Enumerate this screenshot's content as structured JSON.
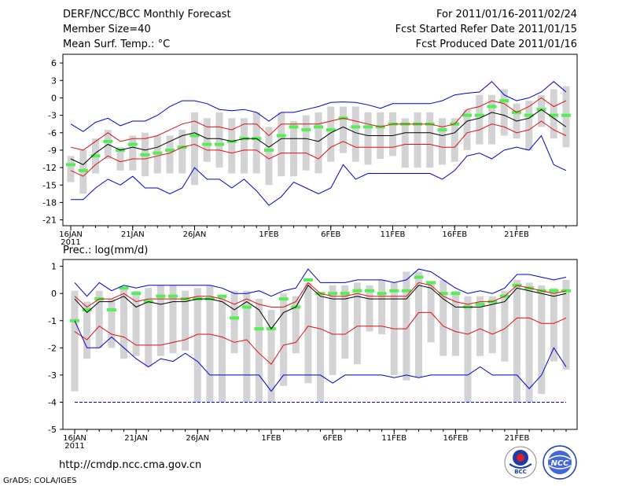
{
  "header": {
    "title": "DERF/NCC/BCC Monthly Forecast",
    "member_size": "Member Size=40",
    "variable": "Mean Surf. Temp.: °C",
    "forecast_period": "For 2011/01/16-2011/02/24",
    "started_refer": "Fcst Started Refer Date 2011/01/15",
    "produced": "Fcst Produced Date 2011/01/16"
  },
  "footer": {
    "url": "http://cmdp.ncc.cma.gov.cn",
    "grads": "GrADS: COLA/IGES",
    "logo_bcc": "BCC",
    "logo_ncc": "NCC"
  },
  "colors": {
    "box": "#d3d3d5",
    "median": "#55ee55",
    "mean": "#000000",
    "sd": "#dd1111",
    "extreme": "#0000cc",
    "baseline": "#0000cc"
  },
  "chart_data": [
    {
      "type": "line",
      "title": "Mean Surf. Temp.: °C",
      "days": 40,
      "ylim": [
        -22,
        7.5
      ],
      "yticks": [
        6,
        3,
        0,
        -3,
        -6,
        -9,
        -12,
        -15,
        -18,
        -21
      ],
      "xticks": [
        {
          "day": 0,
          "label": "16JAN",
          "sub": "2011"
        },
        {
          "day": 5,
          "label": "21JAN"
        },
        {
          "day": 10,
          "label": "26JAN"
        },
        {
          "day": 16,
          "label": "1FEB"
        },
        {
          "day": 21,
          "label": "6FEB"
        },
        {
          "day": 26,
          "label": "11FEB"
        },
        {
          "day": 31,
          "label": "16FEB"
        },
        {
          "day": 36,
          "label": "21FEB"
        }
      ],
      "series": [
        {
          "name": "max",
          "color_key": "extreme",
          "values": [
            -4.5,
            -5.8,
            -4.2,
            -3.5,
            -4.8,
            -4.0,
            -4.0,
            -3.0,
            -1.5,
            -0.5,
            -0.5,
            -1.0,
            -2.0,
            -2.2,
            -2.0,
            -2.5,
            -4.0,
            -2.5,
            -2.5,
            -2.0,
            -1.5,
            -0.8,
            -0.7,
            -0.8,
            -1.2,
            -1.8,
            -1.0,
            -1.0,
            -1.0,
            -1.0,
            -0.5,
            0.5,
            0.8,
            1.0,
            2.8,
            0.5,
            -0.5,
            0.0,
            1.0,
            2.8,
            1.0
          ]
        },
        {
          "name": "mean_plus_sd",
          "color_key": "sd",
          "values": [
            -8.5,
            -9.0,
            -7.5,
            -6.0,
            -7.5,
            -7.0,
            -7.0,
            -6.5,
            -5.5,
            -4.5,
            -4.0,
            -5.0,
            -5.0,
            -5.5,
            -4.5,
            -4.5,
            -6.5,
            -4.5,
            -4.5,
            -4.5,
            -4.5,
            -4.0,
            -3.5,
            -4.0,
            -4.5,
            -5.0,
            -4.5,
            -4.5,
            -4.5,
            -4.5,
            -5.0,
            -4.5,
            -2.0,
            -1.5,
            -0.5,
            -1.0,
            -2.5,
            -1.5,
            0.0,
            -1.5,
            -0.5
          ]
        },
        {
          "name": "mean",
          "color_key": "mean",
          "values": [
            -10.5,
            -11.5,
            -9.5,
            -8.0,
            -9.0,
            -8.5,
            -9.0,
            -8.5,
            -7.5,
            -6.5,
            -6.0,
            -7.0,
            -7.0,
            -7.5,
            -7.0,
            -7.0,
            -8.5,
            -7.0,
            -7.0,
            -7.0,
            -7.5,
            -6.0,
            -5.0,
            -6.0,
            -6.5,
            -6.5,
            -6.5,
            -6.0,
            -6.0,
            -6.0,
            -6.5,
            -6.0,
            -4.0,
            -3.5,
            -2.5,
            -3.0,
            -4.0,
            -3.5,
            -2.0,
            -3.5,
            -5.0
          ]
        },
        {
          "name": "mean_minus_sd",
          "color_key": "sd",
          "values": [
            -12.5,
            -13.5,
            -11.5,
            -10.0,
            -11.0,
            -10.5,
            -10.5,
            -10.0,
            -9.5,
            -8.5,
            -8.0,
            -9.0,
            -9.0,
            -9.5,
            -9.0,
            -9.0,
            -10.5,
            -9.5,
            -9.5,
            -9.5,
            -10.5,
            -8.5,
            -7.5,
            -8.5,
            -8.5,
            -8.5,
            -8.5,
            -8.0,
            -8.0,
            -8.0,
            -8.5,
            -8.5,
            -6.0,
            -5.5,
            -4.5,
            -5.0,
            -6.0,
            -5.5,
            -4.0,
            -5.5,
            -6.5
          ]
        },
        {
          "name": "min",
          "color_key": "extreme",
          "values": [
            -17.5,
            -17.5,
            -15.5,
            -14.0,
            -15.0,
            -13.5,
            -15.5,
            -15.5,
            -16.5,
            -15.5,
            -12.0,
            -14.0,
            -14.0,
            -15.5,
            -14.0,
            -16.0,
            -18.5,
            -17.0,
            -14.5,
            -15.5,
            -16.5,
            -15.5,
            -11.5,
            -14.0,
            -13.0,
            -13.0,
            -13.0,
            -13.0,
            -13.0,
            -13.0,
            -14.0,
            -12.5,
            -10.0,
            -9.5,
            -10.5,
            -9.0,
            -8.5,
            -9.0,
            -6.5,
            -11.5,
            -12.5
          ]
        }
      ],
      "boxes": {
        "low": [
          -14.5,
          -16.5,
          -13.0,
          -10.5,
          -12.5,
          -12.5,
          -13.5,
          -13.0,
          -13.0,
          -13.0,
          -15.0,
          -11.0,
          -12.0,
          -13.0,
          -13.0,
          -13.0,
          -15.0,
          -13.5,
          -13.5,
          -12.5,
          -13.0,
          -11.0,
          -9.5,
          -11.0,
          -11.5,
          -10.5,
          -10.0,
          -12.0,
          -12.0,
          -12.0,
          -11.5,
          -11.0,
          -9.0,
          -8.0,
          -8.0,
          -6.5,
          -7.0,
          -9.0,
          -5.0,
          -7.0,
          -8.5
        ],
        "high": [
          -10.0,
          -9.0,
          -7.0,
          -5.5,
          -8.5,
          -6.5,
          -6.0,
          -6.5,
          -6.5,
          -5.5,
          -2.5,
          -3.5,
          -2.5,
          -3.5,
          -3.5,
          -2.5,
          -5.0,
          -2.5,
          -4.0,
          -3.0,
          -2.5,
          -1.5,
          -1.5,
          -1.5,
          -2.5,
          -2.5,
          -2.5,
          -3.5,
          -2.5,
          -2.5,
          -3.5,
          -3.5,
          -2.0,
          0.5,
          0.5,
          1.5,
          -1.0,
          -0.5,
          0.5,
          1.5,
          2.0
        ],
        "median": [
          -11.5,
          -12.5,
          -10.0,
          -7.5,
          -9.0,
          -8.0,
          -9.8,
          -9.5,
          -9.0,
          -8.5,
          -6.5,
          -8.0,
          -8.0,
          -7.5,
          -7.0,
          -7.0,
          -9.0,
          -6.5,
          -5.0,
          -5.5,
          -5.0,
          -5.5,
          -3.5,
          -5.0,
          -5.0,
          -5.0,
          -4.5,
          -4.5,
          -4.5,
          -4.5,
          -5.5,
          -4.5,
          -3.0,
          -3.0,
          -1.5,
          -0.5,
          -2.5,
          -3.0,
          -2.0,
          -3.0,
          -3.0
        ]
      }
    },
    {
      "type": "line",
      "title": "Prec.: log(mm/d)",
      "days": 40,
      "ylim": [
        -5,
        1.25
      ],
      "yticks": [
        1,
        0,
        -1,
        -2,
        -3,
        -4,
        -5
      ],
      "xticks": [
        {
          "day": 0,
          "label": "16JAN",
          "sub": "2011"
        },
        {
          "day": 5,
          "label": "21JAN"
        },
        {
          "day": 10,
          "label": "26JAN"
        },
        {
          "day": 16,
          "label": "1FEB"
        },
        {
          "day": 21,
          "label": "6FEB"
        },
        {
          "day": 26,
          "label": "11FEB"
        },
        {
          "day": 31,
          "label": "16FEB"
        },
        {
          "day": 36,
          "label": "21FEB"
        }
      ],
      "baseline": -4,
      "series": [
        {
          "name": "max",
          "color_key": "extreme",
          "values": [
            0.4,
            -0.1,
            0.4,
            0.1,
            0.3,
            0.2,
            0.3,
            0.3,
            0.3,
            0.3,
            0.3,
            0.3,
            0.2,
            0.0,
            0.0,
            0.1,
            -0.1,
            0.1,
            0.2,
            0.9,
            0.4,
            0.4,
            0.4,
            0.5,
            0.5,
            0.5,
            0.4,
            0.5,
            0.9,
            0.8,
            0.5,
            0.2,
            0.0,
            0.1,
            0.0,
            0.2,
            0.7,
            0.7,
            0.6,
            0.5,
            0.6
          ]
        },
        {
          "name": "mean_plus_sd",
          "color_key": "sd",
          "values": [
            -0.1,
            -0.5,
            -0.2,
            -0.2,
            0.0,
            -0.3,
            -0.2,
            -0.2,
            -0.2,
            -0.2,
            -0.1,
            -0.1,
            -0.2,
            -0.4,
            -0.2,
            -0.4,
            -0.5,
            -0.5,
            -0.3,
            0.4,
            0.0,
            -0.1,
            -0.1,
            0.0,
            -0.1,
            -0.1,
            -0.1,
            -0.1,
            0.4,
            0.3,
            -0.1,
            -0.3,
            -0.4,
            -0.3,
            -0.3,
            -0.1,
            0.3,
            0.2,
            0.1,
            0.0,
            0.1
          ]
        },
        {
          "name": "mean",
          "color_key": "mean",
          "values": [
            -0.2,
            -0.7,
            -0.3,
            -0.3,
            -0.1,
            -0.5,
            -0.3,
            -0.4,
            -0.3,
            -0.3,
            -0.2,
            -0.2,
            -0.3,
            -0.6,
            -0.3,
            -0.6,
            -1.3,
            -0.7,
            -0.5,
            0.3,
            -0.1,
            -0.2,
            -0.2,
            -0.1,
            -0.2,
            -0.2,
            -0.2,
            -0.2,
            0.3,
            0.2,
            -0.2,
            -0.5,
            -0.5,
            -0.5,
            -0.4,
            -0.3,
            0.2,
            0.1,
            0.0,
            -0.1,
            0.0
          ]
        },
        {
          "name": "mean_minus_sd",
          "color_key": "sd",
          "values": [
            -1.4,
            -1.7,
            -1.2,
            -1.5,
            -1.6,
            -1.9,
            -1.9,
            -1.9,
            -1.8,
            -1.7,
            -1.5,
            -1.5,
            -1.6,
            -1.8,
            -1.7,
            -2.2,
            -2.6,
            -1.9,
            -1.8,
            -1.2,
            -1.3,
            -1.5,
            -1.5,
            -1.2,
            -1.2,
            -1.2,
            -1.3,
            -1.3,
            -0.7,
            -0.7,
            -1.2,
            -1.4,
            -1.5,
            -1.3,
            -1.5,
            -1.3,
            -0.9,
            -0.9,
            -1.1,
            -1.1,
            -0.9
          ]
        },
        {
          "name": "min",
          "color_key": "extreme",
          "values": [
            -1.0,
            -2.0,
            -2.0,
            -1.6,
            -2.0,
            -2.4,
            -2.7,
            -2.4,
            -2.5,
            -2.2,
            -2.5,
            -3.0,
            -3.0,
            -3.0,
            -3.0,
            -3.0,
            -3.6,
            -3.0,
            -3.0,
            -3.0,
            -3.0,
            -3.3,
            -3.0,
            -3.0,
            -3.0,
            -3.0,
            -3.1,
            -3.0,
            -3.1,
            -3.0,
            -3.0,
            -3.0,
            -3.0,
            -2.7,
            -3.0,
            -3.0,
            -3.0,
            -3.5,
            -3.0,
            -2.0,
            -2.7
          ]
        }
      ],
      "boxes": {
        "low": [
          -3.6,
          -2.4,
          -2.0,
          -2.0,
          -2.4,
          -2.3,
          -2.7,
          -2.3,
          -2.2,
          -2.1,
          -4.0,
          -4.0,
          -4.0,
          -2.2,
          -4.0,
          -4.0,
          -4.0,
          -3.4,
          -2.2,
          -3.3,
          -4.0,
          -3.0,
          -2.4,
          -2.6,
          -1.4,
          -1.5,
          -3.0,
          -3.2,
          -3.1,
          -1.8,
          -2.3,
          -2.3,
          -4.0,
          -2.3,
          -2.2,
          -2.5,
          -4.0,
          -4.0,
          -3.7,
          -2.5,
          -2.8
        ],
        "high": [
          0.1,
          -0.3,
          0.1,
          -0.2,
          0.2,
          0.1,
          0.2,
          0.3,
          0.3,
          0.1,
          0.2,
          0.3,
          -0.1,
          0.1,
          0.1,
          -0.2,
          -0.6,
          0.0,
          -0.1,
          0.4,
          0.0,
          0.3,
          0.3,
          0.4,
          0.3,
          0.5,
          0.4,
          0.8,
          0.8,
          0.4,
          0.5,
          0.1,
          -0.1,
          -0.1,
          -0.1,
          0.1,
          0.5,
          0.4,
          0.3,
          0.2,
          0.5
        ],
        "median": [
          -1.0,
          -0.6,
          -0.2,
          -0.6,
          0.2,
          0.0,
          -0.3,
          -0.1,
          -0.1,
          -0.2,
          -0.2,
          -0.2,
          -0.1,
          -0.9,
          -0.5,
          -1.3,
          -1.3,
          -0.2,
          -0.5,
          0.5,
          -0.0,
          0.0,
          0.0,
          0.1,
          0.1,
          0.0,
          0.1,
          0.1,
          0.6,
          0.4,
          0.0,
          0.0,
          -0.5,
          -0.4,
          -0.3,
          -0.1,
          0.3,
          0.2,
          0.1,
          0.1,
          0.1
        ]
      }
    }
  ]
}
